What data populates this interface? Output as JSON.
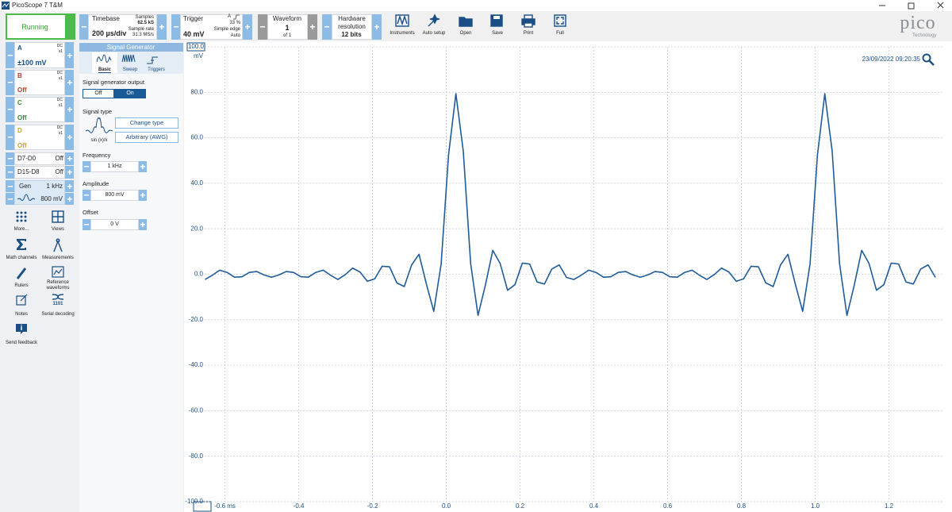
{
  "window": {
    "title": "PicoScope 7 T&M"
  },
  "toolbar": {
    "run": "Running",
    "timebase": {
      "label": "Timebase",
      "value": "200 µs/div",
      "samples_label": "Samples",
      "samples": "62.5 kS",
      "rate_label": "Sample rate",
      "rate": "31.3 MS/s"
    },
    "trigger": {
      "label": "Trigger",
      "value": "40 mV",
      "channel": "A",
      "percent": "33 %",
      "mode": "Simple edge",
      "auto": "Auto"
    },
    "waveform": {
      "label": "Waveform",
      "value": "1",
      "of": "of 1"
    },
    "resolution": {
      "label": "Hardware resolution",
      "value": "12 bits"
    },
    "buttons": [
      "Instruments",
      "Auto setup",
      "Open",
      "Save",
      "Print",
      "Full"
    ]
  },
  "logo": {
    "name": "pico",
    "sub": "Technology"
  },
  "channels": [
    {
      "name": "A",
      "coupling": "DC",
      "probe": "x1",
      "range": "±100 mV"
    },
    {
      "name": "B",
      "coupling": "DC",
      "probe": "x1",
      "range": "Off"
    },
    {
      "name": "C",
      "coupling": "DC",
      "probe": "x1",
      "range": "Off"
    },
    {
      "name": "D",
      "coupling": "DC",
      "probe": "x1",
      "range": "Off"
    }
  ],
  "digital": [
    {
      "name": "D7-D0",
      "state": "Off"
    },
    {
      "name": "D15-D8",
      "state": "Off"
    }
  ],
  "gen": {
    "name": "Gen",
    "freq": "1 kHz",
    "amp": "800 mV"
  },
  "tools": [
    "More...",
    "Views",
    "Math channels",
    "Measurements",
    "Rulers",
    "Reference waveforms",
    "Notes",
    "Serial decoding",
    "Send feedback"
  ],
  "serial_icon": "1101",
  "sig_gen": {
    "title": "Signal Generator",
    "tabs": [
      "Basic",
      "Sweep",
      "Triggers"
    ],
    "output_label": "Signal generator output",
    "off": "Off",
    "on": "On",
    "type_label": "Signal type",
    "type_name": "sin (x)/x",
    "change": "Change type",
    "arbitrary": "Arbitrary (AWG)",
    "frequency_label": "Frequency",
    "frequency": "1 kHz",
    "amplitude_label": "Amplitude",
    "amplitude": "800 mV",
    "offset_label": "Offset",
    "offset": "0 V"
  },
  "chart_data": {
    "type": "line",
    "timestamp": "23/09/2022 09:20:35",
    "ylabel": "mV",
    "color": "#1f5c99",
    "grid": true,
    "xlim": [
      -0.655,
      1.345
    ],
    "xticks": [
      {
        "value": -0.6,
        "label": "-0.6 ms"
      },
      -0.4,
      -0.2,
      {
        "value": 0,
        "label": "0.0"
      },
      0.2,
      0.4,
      0.6,
      0.8,
      {
        "value": 1,
        "label": "1.0"
      },
      1.2
    ],
    "ylim": [
      -100,
      100
    ],
    "yticks": [
      {
        "value": 100,
        "label": "100.0"
      },
      {
        "value": 80,
        "label": "80.0"
      },
      {
        "value": 60,
        "label": "60.0"
      },
      {
        "value": 40,
        "label": "40.0"
      },
      {
        "value": 20,
        "label": "20.0"
      },
      {
        "value": 0,
        "label": "0.0"
      },
      {
        "value": -20,
        "label": "-20.0"
      },
      {
        "value": -40,
        "label": "-40.0"
      },
      {
        "value": -60,
        "label": "-60.0"
      },
      {
        "value": -80,
        "label": "-80.0"
      },
      {
        "value": -100,
        "label": "-100.0"
      }
    ],
    "x": [
      -0.654,
      -0.634,
      -0.614,
      -0.594,
      -0.574,
      -0.554,
      -0.534,
      -0.514,
      -0.494,
      -0.474,
      -0.454,
      -0.434,
      -0.414,
      -0.394,
      -0.374,
      -0.354,
      -0.334,
      -0.314,
      -0.294,
      -0.274,
      -0.254,
      -0.234,
      -0.214,
      -0.194,
      -0.174,
      -0.154,
      -0.134,
      -0.114,
      -0.094,
      -0.074,
      -0.054,
      -0.034,
      -0.014,
      0.006,
      0.026,
      0.046,
      0.066,
      0.086,
      0.106,
      0.126,
      0.146,
      0.166,
      0.186,
      0.206,
      0.226,
      0.246,
      0.266,
      0.286,
      0.306,
      0.326,
      0.346,
      0.366,
      0.386,
      0.406,
      0.426,
      0.446,
      0.466,
      0.486,
      0.506,
      0.526,
      0.546,
      0.566,
      0.586,
      0.606,
      0.626,
      0.646,
      0.666,
      0.686,
      0.706,
      0.726,
      0.746,
      0.766,
      0.786,
      0.806,
      0.826,
      0.846,
      0.866,
      0.886,
      0.906,
      0.926,
      0.946,
      0.966,
      0.986,
      1.006,
      1.026,
      1.046,
      1.066,
      1.086,
      1.106,
      1.126,
      1.146,
      1.166,
      1.186,
      1.206,
      1.226,
      1.246,
      1.266,
      1.286,
      1.306,
      1.326
    ],
    "values": [
      -2.3,
      -0.4,
      1.8,
      0.8,
      -1.3,
      -1.1,
      0.8,
      1.2,
      -0.3,
      -1.3,
      -0.3,
      1.2,
      0.8,
      -1.1,
      -1.3,
      0.8,
      1.8,
      -0.4,
      -2.3,
      -0.2,
      2.7,
      1.0,
      -3.1,
      -2.0,
      3.5,
      3.3,
      -3.8,
      -5.4,
      4.1,
      8.8,
      -4.3,
      -16.3,
      4.5,
      52.4,
      79.4,
      54.1,
      4.7,
      -18.1,
      -4.7,
      10.5,
      4.7,
      -7.0,
      -4.6,
      4.9,
      4.5,
      -3.4,
      -4.3,
      2.3,
      4.1,
      -1.4,
      -2.3,
      -0.4,
      1.8,
      0.8,
      -1.3,
      -1.1,
      0.8,
      1.2,
      -0.3,
      -1.3,
      -0.3,
      1.2,
      0.8,
      -1.1,
      -1.3,
      0.8,
      1.8,
      -0.4,
      -2.3,
      -0.2,
      2.7,
      1.0,
      -3.1,
      -2.0,
      3.5,
      3.3,
      -3.8,
      -5.4,
      4.1,
      8.8,
      -4.3,
      -16.3,
      4.5,
      52.4,
      79.4,
      54.1,
      4.7,
      -18.1,
      -4.7,
      10.5,
      4.7,
      -7.0,
      -4.6,
      4.9,
      4.5,
      -3.4,
      -4.3,
      2.3,
      4.1,
      -1.4
    ]
  }
}
